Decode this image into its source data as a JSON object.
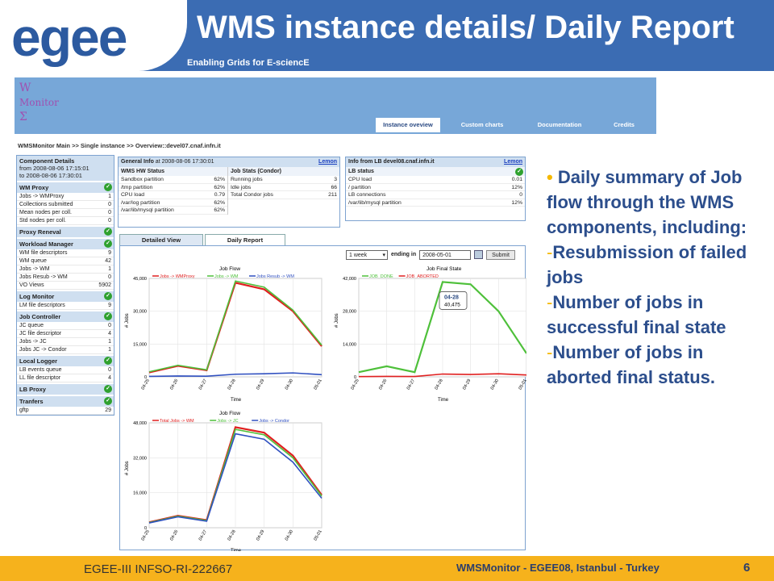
{
  "header": {
    "logo_text": "egee",
    "title": "WMS instance details/ Daily Report",
    "subtitle": "Enabling Grids for E-sciencE"
  },
  "app": {
    "logo_lines": [
      "W",
      "Monitor",
      "Σ"
    ],
    "nav": [
      "Instance oveview",
      "Custom charts",
      "Documentation",
      "Credits"
    ],
    "breadcrumb": "WMSMonitor Main >> Single instance >> Overview::devel07.cnaf.infn.it"
  },
  "component_details": {
    "title": "Component Details",
    "from": "from 2008-08-06 17:15:01",
    "to": "to 2008-08-06 17:30:01",
    "sections": [
      {
        "title": "WM Proxy",
        "rows": [
          [
            "Jobs -> WMProxy",
            "1"
          ],
          [
            "Collections submitted",
            "0"
          ],
          [
            "Mean nodes per coll.",
            "0"
          ],
          [
            "Std nodes per coll.",
            "0"
          ]
        ]
      },
      {
        "title": "Proxy Reneval",
        "rows": []
      },
      {
        "title": "Workload Manager",
        "rows": [
          [
            "WM file descriptors",
            "9"
          ],
          [
            "WM queue",
            "42"
          ],
          [
            "Jobs -> WM",
            "1"
          ],
          [
            "Jobs Resub -> WM",
            "0"
          ],
          [
            "VO Views",
            "5902"
          ]
        ]
      },
      {
        "title": "Log Monitor",
        "rows": [
          [
            "LM file descriptors",
            "9"
          ]
        ]
      },
      {
        "title": "Job Controller",
        "rows": [
          [
            "JC queue",
            "0"
          ],
          [
            "JC file descriptor",
            "4"
          ],
          [
            "Jobs -> JC",
            "1"
          ],
          [
            "Jobs JC -> Condor",
            "1"
          ]
        ]
      },
      {
        "title": "Local Logger",
        "rows": [
          [
            "LB events queue",
            "0"
          ],
          [
            "LL file descriptor",
            "4"
          ]
        ]
      },
      {
        "title": "LB Proxy",
        "rows": []
      },
      {
        "title": "Tranfers",
        "rows": [
          [
            "gftp",
            "29"
          ]
        ]
      }
    ]
  },
  "general_info": {
    "title": "General Info",
    "at": "at 2008-08-06 17:30:01",
    "link": "Lemon",
    "hw_title": "WMS HW Status",
    "hw_rows": [
      [
        "Sandbox partition",
        "62%"
      ],
      [
        "/tmp partition",
        "62%"
      ],
      [
        "CPU load",
        "0.79"
      ],
      [
        "/var/log partition",
        "62%"
      ],
      [
        "/var/lib/mysql partition",
        "62%"
      ]
    ],
    "jobs_title": "Job Stats (Condor)",
    "jobs_rows": [
      [
        "Running jobs",
        "3"
      ],
      [
        "Idle jobs",
        "66"
      ],
      [
        "Total Condor jobs",
        "211"
      ]
    ]
  },
  "lb_info": {
    "title": "Info from LB devel08.cnaf.infn.it",
    "link": "Lemon",
    "status_title": "LB status",
    "rows": [
      [
        "CPU load",
        "0.01"
      ],
      [
        "/ partition",
        "12%"
      ],
      [
        "LB connections",
        "0"
      ],
      [
        "/var/lib/mysql partition",
        "12%"
      ]
    ]
  },
  "tabs": [
    "Detailed View",
    "Daily Report"
  ],
  "controls": {
    "period": "1 week",
    "ending_label": "ending in",
    "ending_value": "2008-05-01",
    "submit": "Submit"
  },
  "chart_data": [
    {
      "type": "line",
      "title": "Job Flow",
      "xlabel": "Time",
      "ylabel": "# Jobs",
      "ylim": [
        0,
        45000
      ],
      "yticks": [
        0,
        15000,
        30000,
        45000
      ],
      "categories": [
        "04-25",
        "04-26",
        "04-27",
        "04-28",
        "04-29",
        "04-30",
        "05-01"
      ],
      "series": [
        {
          "name": "Jobs -> WMProxy",
          "color": "#e02020",
          "values": [
            2000,
            5000,
            3000,
            43000,
            40000,
            30000,
            14000
          ]
        },
        {
          "name": "Jobs -> WM",
          "color": "#4ec03a",
          "values": [
            2300,
            5300,
            3200,
            43800,
            41000,
            30500,
            14500
          ]
        },
        {
          "name": "Jobs Resub -> WM",
          "color": "#3050c0",
          "values": [
            200,
            400,
            300,
            1200,
            1400,
            1800,
            1000
          ]
        }
      ]
    },
    {
      "type": "line",
      "title": "Job Final State",
      "xlabel": "Time",
      "ylabel": "# Jobs",
      "ylim": [
        0,
        42000
      ],
      "yticks": [
        0,
        14000,
        28000,
        42000
      ],
      "categories": [
        "04-25",
        "04-26",
        "04-27",
        "04-28",
        "04-29",
        "04-30",
        "05-01"
      ],
      "series": [
        {
          "name": "JOB_DONE",
          "color": "#4ec03a",
          "values": [
            2000,
            4500,
            2000,
            40475,
            39500,
            28000,
            10000
          ]
        },
        {
          "name": "JOB_ABORTED",
          "color": "#e02020",
          "values": [
            100,
            200,
            150,
            1200,
            1000,
            1300,
            800
          ]
        }
      ],
      "annotation": {
        "label": "04-28",
        "value": "40,475"
      }
    },
    {
      "type": "line",
      "title": "Job Flow",
      "xlabel": "Time",
      "ylabel": "# Jobs",
      "ylim": [
        0,
        48000
      ],
      "yticks": [
        0,
        16000,
        32000,
        48000
      ],
      "categories": [
        "04-25",
        "04-26",
        "04-27",
        "04-28",
        "04-29",
        "04-30",
        "05-01"
      ],
      "series": [
        {
          "name": "Total Jobs -> WM",
          "color": "#e02020",
          "values": [
            2500,
            5500,
            3500,
            46000,
            43500,
            33000,
            15000
          ]
        },
        {
          "name": "Jobs -> JC",
          "color": "#4ec03a",
          "values": [
            2400,
            5300,
            3300,
            45000,
            42500,
            32000,
            14500
          ]
        },
        {
          "name": "Jobs -> Condor",
          "color": "#3050c0",
          "values": [
            2200,
            5000,
            3000,
            43000,
            40500,
            30000,
            13500
          ]
        }
      ]
    }
  ],
  "bullets": {
    "main": "Daily summary of Job flow through the WMS components, including:",
    "items": [
      "Resubmission of failed jobs",
      "Number of jobs in successful final state",
      "Number of jobs in aborted final status."
    ]
  },
  "footer": {
    "left": "EGEE-III INFSO-RI-222667",
    "middle": "WMSMonitor -  EGEE08, Istanbul - Turkey",
    "page": "6"
  },
  "colors": {
    "header": "#3b6cb3",
    "footer": "#f6b21c",
    "bullet_text": "#2c4e8c",
    "accent": "#f5b800"
  }
}
